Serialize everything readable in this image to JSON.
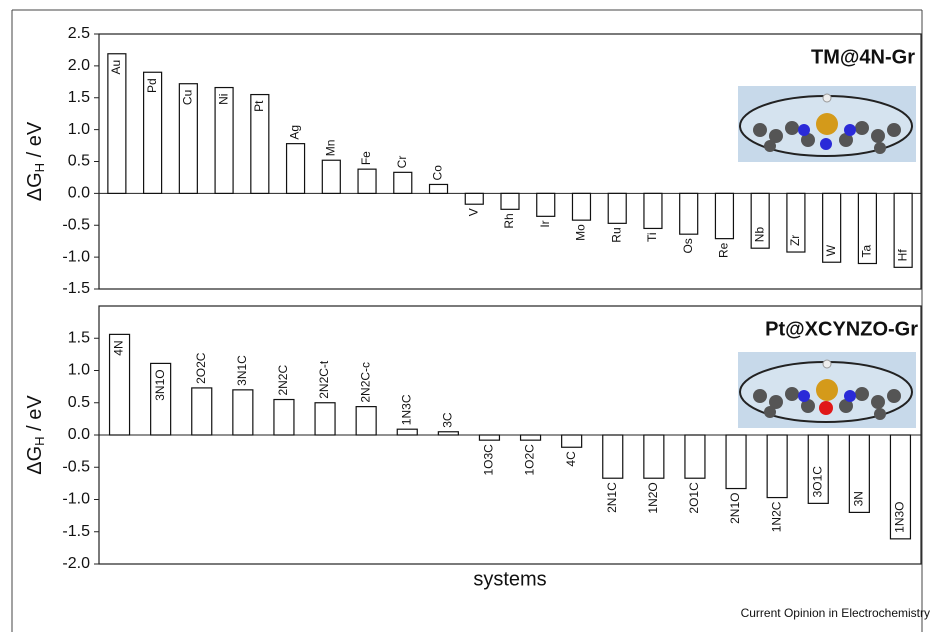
{
  "chart_data": [
    {
      "type": "bar",
      "title": "TM@4N-Gr",
      "y_label": {
        "main": "ΔG",
        "sub": "H",
        "unit": " / eV"
      },
      "categories": [
        "Au",
        "Pd",
        "Cu",
        "Ni",
        "Pt",
        "Ag",
        "Mn",
        "Fe",
        "Cr",
        "Co",
        "V",
        "Rh",
        "Ir",
        "Mo",
        "Ru",
        "Ti",
        "Os",
        "Re",
        "Nb",
        "Zr",
        "W",
        "Ta",
        "Hf"
      ],
      "values": [
        2.19,
        1.9,
        1.72,
        1.66,
        1.55,
        0.78,
        0.52,
        0.38,
        0.33,
        0.14,
        -0.17,
        -0.25,
        -0.36,
        -0.42,
        -0.47,
        -0.55,
        -0.64,
        -0.71,
        -0.86,
        -0.92,
        -1.08,
        -1.1,
        -1.16
      ],
      "color": "#ffffff",
      "ylim": [
        -1.5,
        2.5
      ],
      "yticks": [
        -1.5,
        {
          "value": -1,
          "label": "-1.0"
        },
        -0.5,
        {
          "value": 0,
          "label": "0.0"
        },
        0.5,
        {
          "value": 1,
          "label": "1.0"
        },
        1.5,
        {
          "value": 2,
          "label": "2.0"
        },
        2.5
      ]
    },
    {
      "type": "bar",
      "title": "Pt@XCYNZO-Gr",
      "y_label": {
        "main": "ΔG",
        "sub": "H",
        "unit": " / eV"
      },
      "x_label": "systems",
      "categories": [
        "4N",
        "3N1O",
        "2O2C",
        "3N1C",
        "2N2C",
        "2N2C-t",
        "2N2C-c",
        "1N3C",
        "3C",
        "1O3C",
        "1O2C",
        "4C",
        "2N1C",
        "1N2O",
        "2O1C",
        "2N1O",
        "1N2C",
        "3O1C",
        "3N",
        "1N3O"
      ],
      "values": [
        1.56,
        1.11,
        0.73,
        0.7,
        0.55,
        0.5,
        0.44,
        0.09,
        0.05,
        -0.08,
        -0.08,
        -0.19,
        -0.67,
        -0.67,
        -0.67,
        -0.83,
        -0.97,
        -1.06,
        -1.2,
        -1.61
      ],
      "color": "#ffffff",
      "ylim": [
        -2,
        2
      ],
      "yticks": [
        {
          "value": -2,
          "label": "-2.0"
        },
        -1.5,
        {
          "value": -1,
          "label": "-1.0"
        },
        -0.5,
        {
          "value": 0,
          "label": "0.0"
        },
        0.5,
        {
          "value": 1,
          "label": "1.0"
        },
        1.5
      ]
    }
  ],
  "source": "Current Opinion in Electrochemistry"
}
